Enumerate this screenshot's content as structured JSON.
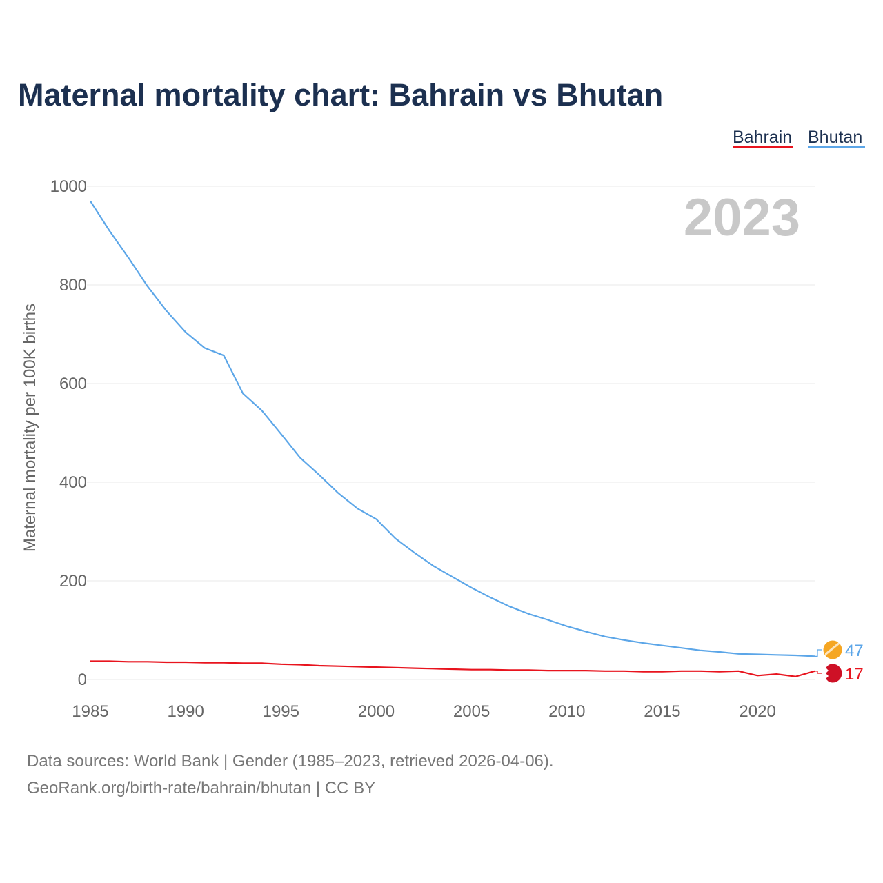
{
  "title": "Maternal mortality chart: Bahrain vs Bhutan",
  "year_watermark": "2023",
  "legend": [
    {
      "label": "Bahrain",
      "color": "#e8141e"
    },
    {
      "label": "Bhutan",
      "color": "#5ca6e8"
    }
  ],
  "source_lines": [
    "Data sources: World Bank | Gender (1985–2023, retrieved 2026-04-06).",
    "GeoRank.org/birth-rate/bahrain/bhutan | CC BY"
  ],
  "chart_data": {
    "type": "line",
    "title": "Maternal mortality chart: Bahrain vs Bhutan",
    "xlabel": "",
    "ylabel": "Maternal mortality per 100K births",
    "xlim": [
      1985,
      2023
    ],
    "ylim": [
      0,
      1000
    ],
    "x_ticks": [
      1985,
      1990,
      1995,
      2000,
      2005,
      2010,
      2015,
      2020
    ],
    "y_ticks": [
      0,
      200,
      400,
      600,
      800,
      1000
    ],
    "grid": true,
    "x": [
      1985,
      1986,
      1987,
      1988,
      1989,
      1990,
      1991,
      1992,
      1993,
      1994,
      1995,
      1996,
      1997,
      1998,
      1999,
      2000,
      2001,
      2002,
      2003,
      2004,
      2005,
      2006,
      2007,
      2008,
      2009,
      2010,
      2011,
      2012,
      2013,
      2014,
      2015,
      2016,
      2017,
      2018,
      2019,
      2020,
      2021,
      2022,
      2023
    ],
    "series": [
      {
        "name": "Bahrain",
        "color": "#e8141e",
        "end_label": "17",
        "values": [
          37,
          37,
          36,
          36,
          35,
          35,
          34,
          34,
          33,
          33,
          31,
          30,
          28,
          27,
          26,
          25,
          24,
          23,
          22,
          21,
          20,
          20,
          19,
          19,
          18,
          18,
          18,
          17,
          17,
          16,
          16,
          17,
          17,
          16,
          17,
          8,
          11,
          6,
          17
        ]
      },
      {
        "name": "Bhutan",
        "color": "#5ca6e8",
        "end_label": "47",
        "values": [
          970,
          910,
          855,
          797,
          747,
          704,
          672,
          657,
          580,
          545,
          498,
          450,
          415,
          378,
          347,
          325,
          286,
          257,
          230,
          208,
          186,
          166,
          148,
          133,
          121,
          108,
          97,
          87,
          80,
          74,
          69,
          64,
          59,
          56,
          52,
          51,
          50,
          49,
          47
        ]
      }
    ]
  }
}
